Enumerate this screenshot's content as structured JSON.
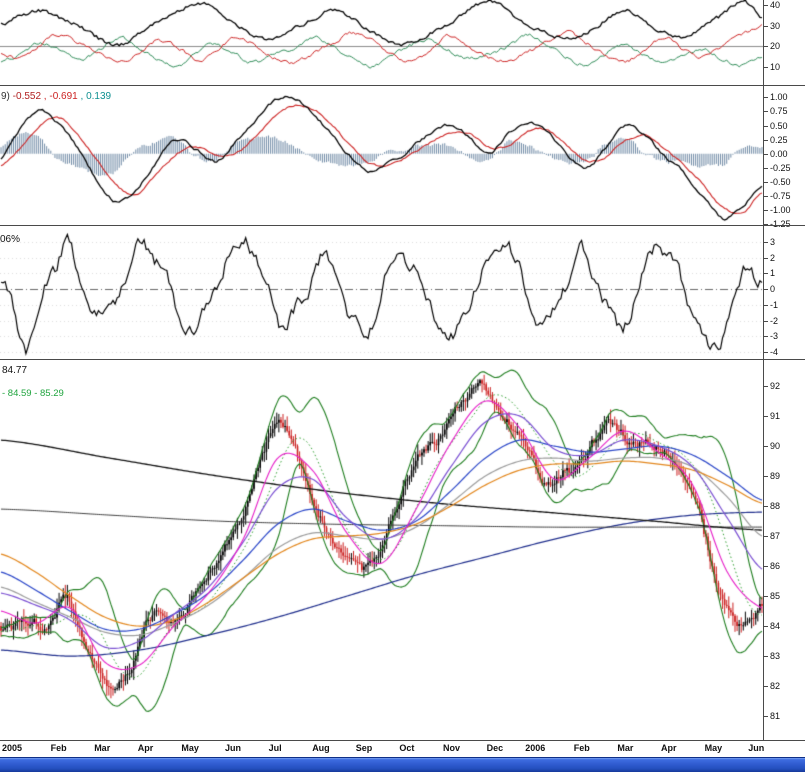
{
  "taskbar": {
    "color_top": "#7aa1f2",
    "color_mid": "#2d59cd",
    "color_bottom": "#16399a"
  },
  "chart_data": {
    "type": "multi-panel-technical-chart",
    "x_axis": {
      "months_total": 17.5,
      "labels": [
        {
          "text": "2005",
          "month": 0,
          "bold": true
        },
        {
          "text": "Feb",
          "month": 1
        },
        {
          "text": "Mar",
          "month": 2
        },
        {
          "text": "Apr",
          "month": 3
        },
        {
          "text": "May",
          "month": 4
        },
        {
          "text": "Jun",
          "month": 5
        },
        {
          "text": "Jul",
          "month": 6
        },
        {
          "text": "Aug",
          "month": 7
        },
        {
          "text": "Sep",
          "month": 8
        },
        {
          "text": "Oct",
          "month": 9
        },
        {
          "text": "Nov",
          "month": 10
        },
        {
          "text": "Dec",
          "month": 11
        },
        {
          "text": "2006",
          "month": 12,
          "bold": true
        },
        {
          "text": "Feb",
          "month": 13
        },
        {
          "text": "Mar",
          "month": 14
        },
        {
          "text": "Apr",
          "month": 15
        },
        {
          "text": "May",
          "month": 16
        },
        {
          "text": "Jun",
          "month": 17
        }
      ]
    },
    "panels": [
      {
        "id": "dmi",
        "type": "line",
        "value_range": [
          42.4,
          0.8
        ],
        "y_ticks": [
          40,
          30,
          20,
          10
        ],
        "level_line": 20,
        "jitter": {
          "amp": 1.6,
          "freq": 70
        },
        "series": [
          {
            "name": "adx",
            "color": "#000000",
            "values": [
              30,
              34,
              38,
              34,
              29,
              24,
              21,
              25,
              31,
              37,
              41,
              37,
              31,
              26,
              23,
              28,
              34,
              38,
              33,
              27,
              23,
              21,
              26,
              32,
              38,
              41,
              37,
              31,
              26,
              23,
              27,
              33,
              37,
              32,
              27,
              24,
              29,
              36,
              42,
              33
            ]
          },
          {
            "name": "di-minus",
            "color": "#cc2222",
            "values": [
              18,
              14,
              20,
              26,
              22,
              16,
              12,
              17,
              23,
              19,
              14,
              18,
              24,
              20,
              15,
              12,
              16,
              22,
              27,
              22,
              16,
              13,
              18,
              24,
              20,
              15,
              12,
              17,
              23,
              27,
              21,
              16,
              13,
              18,
              24,
              19,
              15,
              20,
              26,
              31
            ]
          },
          {
            "name": "di-plus",
            "color": "#2e8b57",
            "values": [
              12,
              17,
              22,
              17,
              13,
              19,
              24,
              19,
              14,
              11,
              16,
              21,
              17,
              12,
              15,
              20,
              25,
              19,
              14,
              11,
              15,
              20,
              24,
              18,
              13,
              16,
              21,
              25,
              20,
              15,
              12,
              16,
              21,
              16,
              12,
              15,
              19,
              14,
              10,
              14
            ]
          }
        ]
      },
      {
        "id": "macd",
        "type": "macd",
        "label_parts": [
          {
            "text": "9) ",
            "color": "#333333"
          },
          {
            "text": "-0.552",
            "color": "#b22222"
          },
          {
            "text": " , -0.691",
            "color": "#cc2222"
          },
          {
            "text": " , 0.139",
            "color": "#0f9090"
          }
        ],
        "value_range": [
          1.2,
          -1.28
        ],
        "y_ticks": [
          1.0,
          0.75,
          0.5,
          0.25,
          0.0,
          -0.25,
          -0.5,
          -0.75,
          -1.0,
          -1.25
        ],
        "tick_decimals": 2,
        "histogram_color": "#708ba6",
        "last_values": {
          "macd": -0.552,
          "signal": -0.691,
          "histogram": 0.139
        },
        "series": [
          {
            "name": "macd-line",
            "color": "#000000",
            "values": [
              -0.1,
              0.45,
              0.75,
              0.5,
              0.05,
              -0.5,
              -0.85,
              -0.6,
              -0.1,
              0.25,
              0.1,
              -0.15,
              0.2,
              0.55,
              0.9,
              0.97,
              0.7,
              0.3,
              -0.1,
              -0.3,
              -0.15,
              0.1,
              0.35,
              0.5,
              0.3,
              0.0,
              0.35,
              0.55,
              0.35,
              0.0,
              -0.25,
              0.1,
              0.45,
              0.3,
              -0.05,
              -0.35,
              -0.8,
              -1.15,
              -0.95,
              -0.552
            ]
          },
          {
            "name": "signal-line",
            "color": "#cc2222",
            "values": [
              -0.2,
              0.1,
              0.5,
              0.62,
              0.3,
              -0.15,
              -0.6,
              -0.7,
              -0.35,
              0.0,
              0.12,
              0.0,
              0.0,
              0.3,
              0.65,
              0.85,
              0.8,
              0.5,
              0.1,
              -0.18,
              -0.2,
              -0.02,
              0.2,
              0.38,
              0.35,
              0.12,
              0.15,
              0.4,
              0.42,
              0.15,
              -0.12,
              -0.05,
              0.25,
              0.33,
              0.08,
              -0.2,
              -0.55,
              -0.95,
              -1.05,
              -0.691
            ]
          }
        ]
      },
      {
        "id": "oscillator",
        "type": "line",
        "label": "06%",
        "value_range": [
          4.02,
          -4.51
        ],
        "y_ticks": [
          3,
          2,
          1,
          0,
          -1,
          -2,
          -3,
          -4
        ],
        "zero_line": {
          "value": 0,
          "style": "dash-dot",
          "color": "#666666"
        },
        "jitter": {
          "amp": 0.75,
          "freq": 150
        },
        "series": [
          {
            "name": "oscillator",
            "color": "#000000",
            "values": [
              0.5,
              -1.5,
              -3.6,
              -1.0,
              1.2,
              2.8,
              1.0,
              -0.8,
              -2.2,
              -0.5,
              1.5,
              3.2,
              1.8,
              0.2,
              -1.8,
              -2.8,
              -1.0,
              0.8,
              2.2,
              3.4,
              1.2,
              -0.6,
              -2.4,
              -1.2,
              0.6,
              2.0,
              0.4,
              -1.6,
              -3.0,
              -1.4,
              0.8,
              2.6,
              1.2,
              -0.4,
              -2.0,
              -3.2,
              -1.6,
              0.4,
              1.8,
              3.0,
              1.4,
              -0.6,
              -2.2,
              -1.0,
              1.0,
              2.4,
              0.8,
              -1.2,
              -2.6,
              -0.8,
              1.4,
              3.0,
              1.6,
              -0.2,
              -1.8,
              -4.2,
              -2.6,
              -0.4,
              1.6,
              0.6
            ]
          }
        ]
      },
      {
        "id": "price",
        "type": "candlestick",
        "label_last": "84.77",
        "label_bands": "- 84.59 - 85.29",
        "value_range": [
          92.87,
          80.17
        ],
        "y_ticks": [
          92,
          91,
          90,
          89,
          88,
          87,
          86,
          85,
          84,
          83,
          82,
          81
        ],
        "bars": 368,
        "up_color": "#000000",
        "down_color": "#cc2222",
        "close_anchors": [
          83.8,
          84.1,
          84.0,
          84.9,
          83.2,
          82.0,
          82.6,
          84.3,
          84.0,
          85.2,
          86.3,
          87.6,
          89.6,
          90.7,
          88.9,
          87.3,
          86.3,
          85.9,
          87.6,
          89.3,
          90.1,
          91.3,
          92.1,
          91.2,
          90.2,
          88.8,
          89.2,
          89.8,
          90.8,
          90.1,
          90.0,
          89.4,
          88.0,
          85.3,
          84.0,
          84.7
        ],
        "bollinger": {
          "period": 20,
          "mult": 2,
          "band_color": "#1e7d1e",
          "mid_color": "#2f9e2f"
        },
        "overlays": [
          {
            "name": "ma-navy",
            "color": "#1f2e8c",
            "width": 1.2,
            "values": [
              83.2,
              83.0,
              83.2,
              83.7,
              84.3,
              85.0,
              85.7,
              86.3,
              86.9,
              87.4,
              87.7,
              87.8
            ]
          },
          {
            "name": "ma-dark-flat",
            "color": "#3c3c3c",
            "width": 1,
            "values": [
              87.9,
              87.7,
              87.5,
              87.4,
              87.35,
              87.3,
              87.3,
              87.3
            ]
          },
          {
            "name": "ma-long-black",
            "color": "#101010",
            "width": 1.3,
            "values": [
              90.2,
              89.6,
              89.0,
              88.5,
              88.1,
              87.8,
              87.5,
              87.2
            ]
          },
          {
            "name": "ma-gray",
            "color": "#9c9c9c",
            "width": 1.2,
            "values": [
              85.3,
              84.8,
              84.3,
              83.8,
              83.7,
              84.1,
              84.7,
              85.6,
              86.6,
              87.1,
              87.0,
              86.9,
              87.3,
              88.1,
              89.0,
              89.5,
              89.6,
              89.5,
              89.6,
              89.6,
              89.3,
              88.3,
              87.0
            ]
          },
          {
            "name": "ma-orange",
            "color": "#e2861c",
            "width": 1.2,
            "values": [
              86.4,
              85.8,
              85.0,
              84.3,
              84.0,
              84.2,
              84.8,
              85.6,
              86.4,
              86.9,
              87.0,
              87.1,
              87.4,
              88.0,
              88.7,
              89.2,
              89.4,
              89.4,
              89.5,
              89.4,
              89.2,
              88.7,
              88.1
            ]
          },
          {
            "name": "ma-blue",
            "color": "#2a46c8",
            "width": 1.2,
            "values": [
              85.8,
              85.2,
              84.5,
              83.9,
              83.9,
              84.4,
              85.1,
              86.2,
              87.4,
              87.9,
              87.5,
              87.2,
              87.5,
              88.5,
              89.6,
              90.2,
              90.0,
              89.8,
              89.9,
              90.0,
              89.7,
              89.0,
              88.2
            ]
          },
          {
            "name": "ma-violet",
            "color": "#7a4fd2",
            "width": 1.2,
            "values": [
              85.1,
              84.7,
              84.2,
              83.3,
              83.5,
              84.4,
              85.3,
              86.8,
              88.6,
              88.9,
              87.6,
              86.9,
              87.6,
              89.3,
              90.8,
              91.0,
              89.9,
              89.7,
              90.2,
              90.0,
              89.3,
              87.6,
              85.9
            ]
          },
          {
            "name": "ma-magenta",
            "color": "#e61ec8",
            "width": 1.1,
            "values": [
              84.5,
              84.1,
              84.6,
              82.8,
              82.7,
              84.0,
              85.1,
              86.9,
              89.6,
              89.2,
              87.1,
              86.1,
              87.9,
              90.1,
              91.5,
              90.6,
              88.9,
              89.6,
              90.5,
              89.8,
              88.7,
              85.8,
              84.6
            ]
          }
        ]
      }
    ]
  }
}
